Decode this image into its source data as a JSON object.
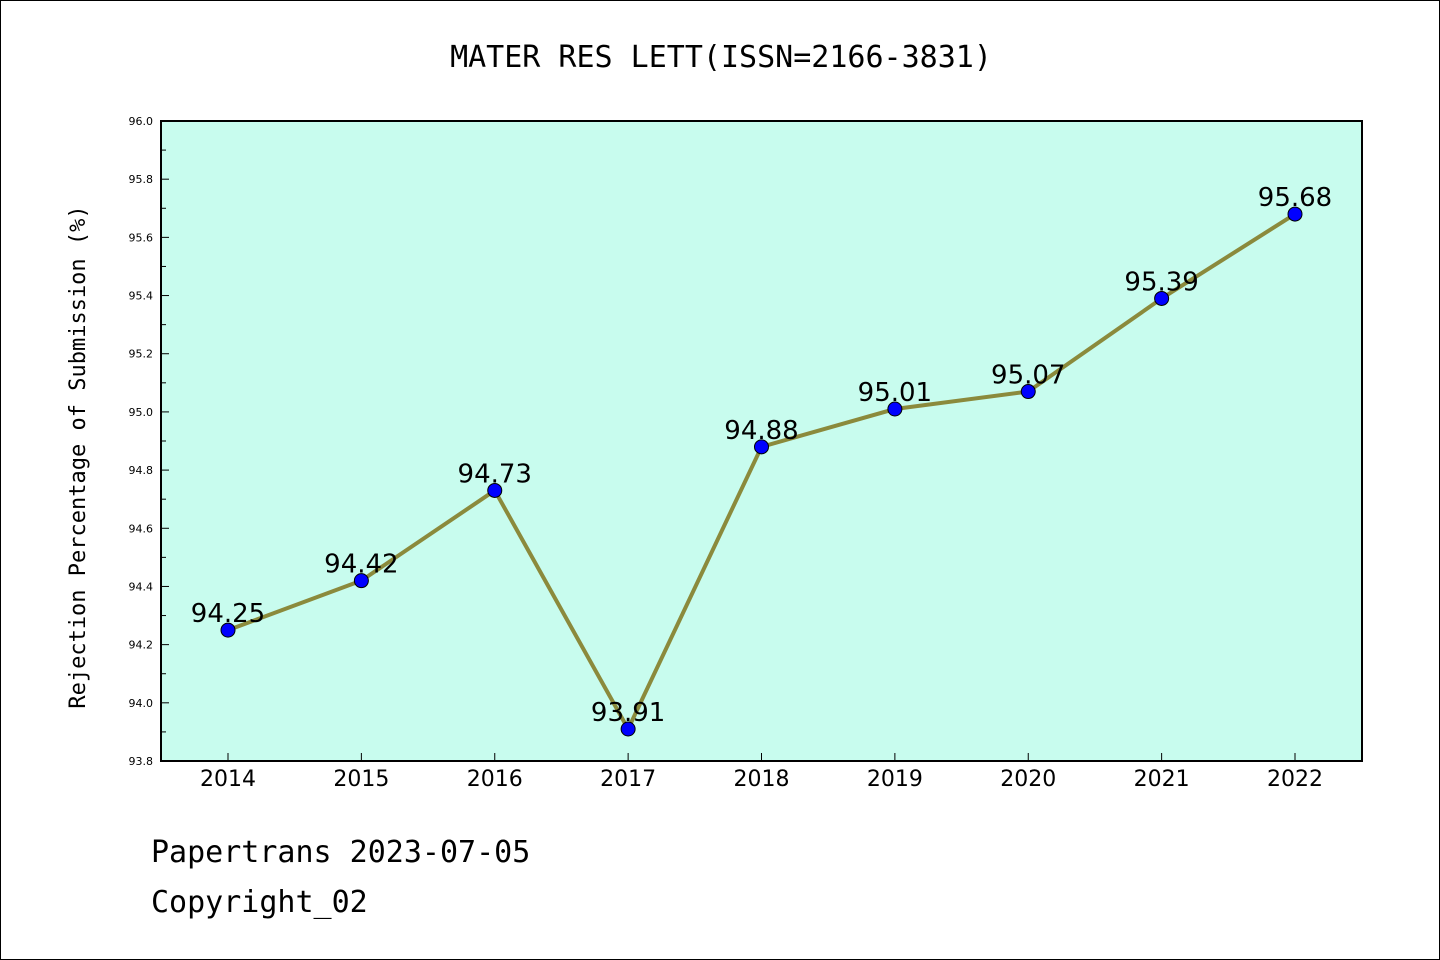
{
  "footer": {
    "line1": "Papertrans 2023-07-05",
    "line2": "Copyright_02"
  },
  "colors": {
    "plot_background": "#c8fcee",
    "line": "#8b8a3c",
    "marker": "#0000ff"
  },
  "chart_data": {
    "type": "line",
    "title": "MATER RES LETT(ISSN=2166-3831)",
    "xlabel": "",
    "ylabel": "Rejection Percentage of Submission (%)",
    "categories": [
      "2014",
      "2015",
      "2016",
      "2017",
      "2018",
      "2019",
      "2020",
      "2021",
      "2022"
    ],
    "values": [
      94.25,
      94.42,
      94.73,
      93.91,
      94.88,
      95.01,
      95.07,
      95.39,
      95.68
    ],
    "data_labels": [
      "94.25",
      "94.42",
      "94.73",
      "93.91",
      "94.88",
      "95.01",
      "95.07",
      "95.39",
      "95.68"
    ],
    "ylim": [
      93.8,
      96.0
    ],
    "yticks": [
      "93.8",
      "94.0",
      "94.2",
      "94.4",
      "94.6",
      "94.8",
      "95.0",
      "95.2",
      "95.4",
      "95.6",
      "95.8",
      "96.0"
    ],
    "grid": false,
    "legend": "none"
  }
}
